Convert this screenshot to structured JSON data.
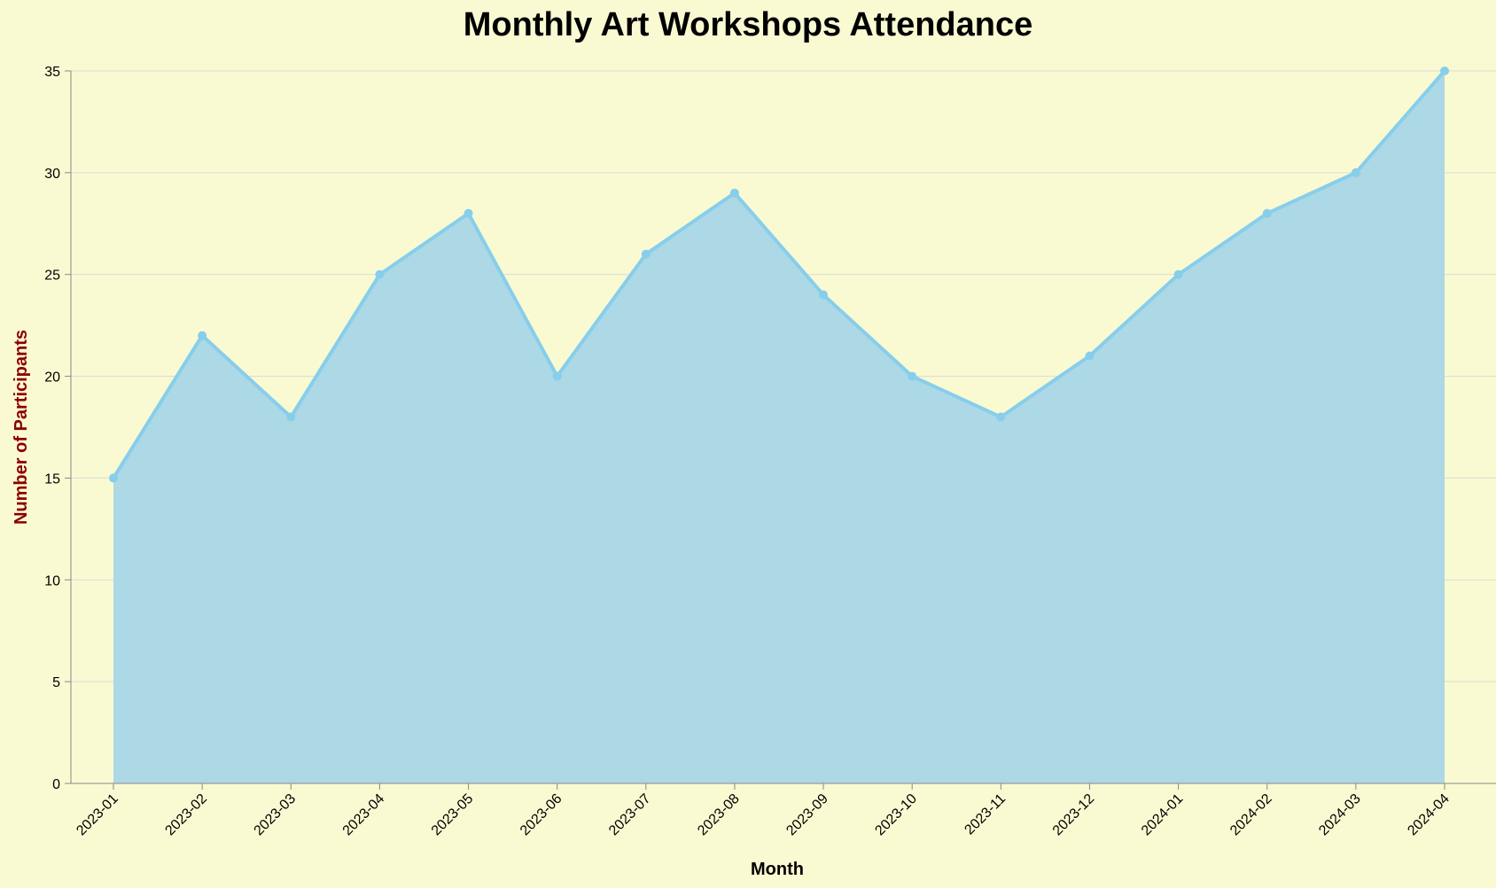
{
  "chart_data": {
    "type": "area",
    "title": "Monthly Art Workshops Attendance",
    "xlabel": "Month",
    "ylabel": "Number of Participants",
    "categories": [
      "2023-01",
      "2023-02",
      "2023-03",
      "2023-04",
      "2023-05",
      "2023-06",
      "2023-07",
      "2023-08",
      "2023-09",
      "2023-10",
      "2023-11",
      "2023-12",
      "2024-01",
      "2024-02",
      "2024-03",
      "2024-04"
    ],
    "values": [
      15,
      22,
      18,
      25,
      28,
      20,
      26,
      29,
      24,
      20,
      18,
      21,
      25,
      28,
      30,
      35
    ],
    "ylim": [
      0,
      35
    ],
    "yticks": [
      0,
      5,
      10,
      15,
      20,
      25,
      30,
      35
    ],
    "grid": true,
    "colors": {
      "background": "#FAFAD2",
      "area_fill": "#ADD8E6",
      "line": "#87CEEB",
      "ylabel": "#8B0000",
      "xlabel": "#000000"
    }
  }
}
